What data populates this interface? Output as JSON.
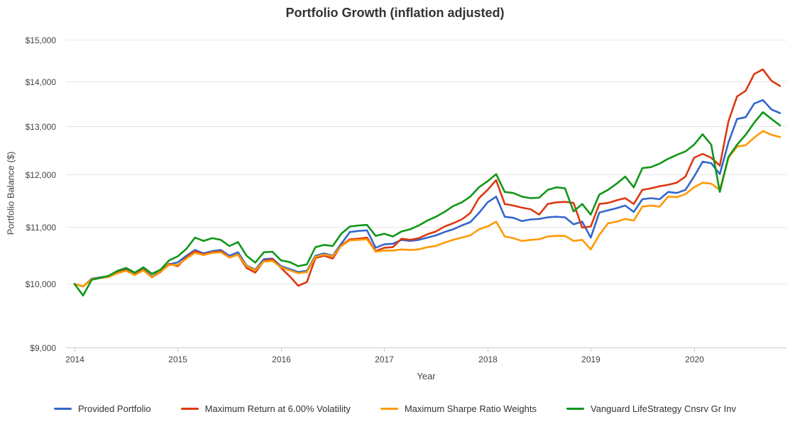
{
  "title": "Portfolio Growth (inflation adjusted)",
  "chart_data": {
    "type": "line",
    "title": "Portfolio Growth (inflation adjusted)",
    "xlabel": "Year",
    "ylabel": "Portfolio Balance ($)",
    "y_scale": "log",
    "ylim": [
      9000,
      15000
    ],
    "grid": true,
    "legend_position": "bottom",
    "y_ticks": [
      9000,
      10000,
      11000,
      12000,
      13000,
      14000,
      15000
    ],
    "y_tick_labels": [
      "$9,000",
      "$10,000",
      "$11,000",
      "$12,000",
      "$13,000",
      "$14,000",
      "$15,000"
    ],
    "x_ticks": [
      "2014",
      "2015",
      "2016",
      "2017",
      "2018",
      "2019",
      "2020"
    ],
    "x": [
      "2013-12",
      "2014-01",
      "2014-02",
      "2014-03",
      "2014-04",
      "2014-05",
      "2014-06",
      "2014-07",
      "2014-08",
      "2014-09",
      "2014-10",
      "2014-11",
      "2014-12",
      "2015-01",
      "2015-02",
      "2015-03",
      "2015-04",
      "2015-05",
      "2015-06",
      "2015-07",
      "2015-08",
      "2015-09",
      "2015-10",
      "2015-11",
      "2015-12",
      "2016-01",
      "2016-02",
      "2016-03",
      "2016-04",
      "2016-05",
      "2016-06",
      "2016-07",
      "2016-08",
      "2016-09",
      "2016-10",
      "2016-11",
      "2016-12",
      "2017-01",
      "2017-02",
      "2017-03",
      "2017-04",
      "2017-05",
      "2017-06",
      "2017-07",
      "2017-08",
      "2017-09",
      "2017-10",
      "2017-11",
      "2017-12",
      "2018-01",
      "2018-02",
      "2018-03",
      "2018-04",
      "2018-05",
      "2018-06",
      "2018-07",
      "2018-08",
      "2018-09",
      "2018-10",
      "2018-11",
      "2018-12",
      "2019-01",
      "2019-02",
      "2019-03",
      "2019-04",
      "2019-05",
      "2019-06",
      "2019-07",
      "2019-08",
      "2019-09",
      "2019-10",
      "2019-11",
      "2019-12",
      "2020-01",
      "2020-02",
      "2020-03",
      "2020-04",
      "2020-05",
      "2020-06",
      "2020-07",
      "2020-08",
      "2020-09",
      "2020-10"
    ],
    "series": [
      {
        "name": "Provided Portfolio",
        "color": "#3366cc",
        "values": [
          10000,
          9960,
          10090,
          10110,
          10130,
          10200,
          10240,
          10170,
          10250,
          10120,
          10230,
          10330,
          10365,
          10480,
          10580,
          10520,
          10560,
          10580,
          10480,
          10540,
          10310,
          10240,
          10420,
          10430,
          10300,
          10250,
          10200,
          10220,
          10480,
          10520,
          10480,
          10690,
          10900,
          10920,
          10930,
          10620,
          10680,
          10690,
          10760,
          10740,
          10760,
          10800,
          10840,
          10900,
          10950,
          11020,
          11080,
          11250,
          11450,
          11560,
          11180,
          11160,
          11100,
          11130,
          11140,
          11170,
          11180,
          11170,
          11040,
          11090,
          10800,
          11260,
          11300,
          11340,
          11390,
          11270,
          11510,
          11530,
          11510,
          11650,
          11630,
          11690,
          11950,
          12250,
          12220,
          12000,
          12650,
          13150,
          13190,
          13490,
          13570,
          13360,
          13280
        ]
      },
      {
        "name": "Maximum Return at 6.00% Volatility",
        "color": "#dc3912",
        "values": [
          10000,
          9960,
          10080,
          10100,
          10120,
          10190,
          10230,
          10150,
          10240,
          10110,
          10200,
          10340,
          10300,
          10450,
          10560,
          10500,
          10540,
          10560,
          10450,
          10500,
          10270,
          10190,
          10390,
          10420,
          10270,
          10130,
          9970,
          10030,
          10440,
          10480,
          10430,
          10660,
          10770,
          10780,
          10800,
          10560,
          10620,
          10630,
          10780,
          10760,
          10790,
          10860,
          10910,
          11000,
          11060,
          11130,
          11250,
          11530,
          11690,
          11880,
          11420,
          11390,
          11350,
          11320,
          11220,
          11420,
          11450,
          11460,
          11440,
          10980,
          11000,
          11420,
          11440,
          11490,
          11530,
          11420,
          11690,
          11720,
          11760,
          11790,
          11830,
          11950,
          12330,
          12410,
          12330,
          12170,
          13100,
          13650,
          13780,
          14170,
          14280,
          14010,
          13890
        ]
      },
      {
        "name": "Maximum Sharpe Ratio Weights",
        "color": "#ff9900",
        "values": [
          10000,
          9960,
          10080,
          10100,
          10120,
          10180,
          10220,
          10150,
          10230,
          10110,
          10210,
          10320,
          10320,
          10430,
          10530,
          10490,
          10530,
          10540,
          10450,
          10500,
          10300,
          10230,
          10380,
          10390,
          10280,
          10230,
          10180,
          10200,
          10460,
          10500,
          10470,
          10650,
          10750,
          10760,
          10770,
          10550,
          10570,
          10570,
          10590,
          10580,
          10590,
          10630,
          10650,
          10710,
          10760,
          10800,
          10840,
          10950,
          11000,
          11090,
          10820,
          10790,
          10740,
          10760,
          10770,
          10820,
          10830,
          10830,
          10740,
          10760,
          10590,
          10850,
          11060,
          11090,
          11140,
          11110,
          11370,
          11390,
          11370,
          11560,
          11550,
          11610,
          11740,
          11830,
          11810,
          11690,
          12330,
          12560,
          12590,
          12750,
          12890,
          12810,
          12760
        ]
      },
      {
        "name": "Vanguard LifeStrategy Cnsrv Gr Inv",
        "color": "#109618",
        "values": [
          10000,
          9810,
          10070,
          10100,
          10140,
          10220,
          10270,
          10190,
          10280,
          10170,
          10240,
          10400,
          10470,
          10600,
          10800,
          10740,
          10790,
          10760,
          10650,
          10720,
          10480,
          10360,
          10540,
          10550,
          10400,
          10370,
          10300,
          10330,
          10630,
          10670,
          10650,
          10870,
          11000,
          11020,
          11030,
          10830,
          10870,
          10820,
          10910,
          10950,
          11020,
          11110,
          11180,
          11270,
          11380,
          11450,
          11560,
          11740,
          11860,
          12000,
          11650,
          11630,
          11560,
          11530,
          11540,
          11690,
          11740,
          11720,
          11280,
          11420,
          11220,
          11600,
          11690,
          11810,
          11950,
          11740,
          12120,
          12140,
          12210,
          12310,
          12390,
          12460,
          12600,
          12820,
          12600,
          11650,
          12350,
          12600,
          12810,
          13070,
          13300,
          13150,
          13010
        ]
      }
    ]
  },
  "style": {
    "gridline_color": "#e6e6e6",
    "baseline_color": "#c9c9c9",
    "tick_color": "#c9c9c9",
    "background": "#ffffff"
  }
}
